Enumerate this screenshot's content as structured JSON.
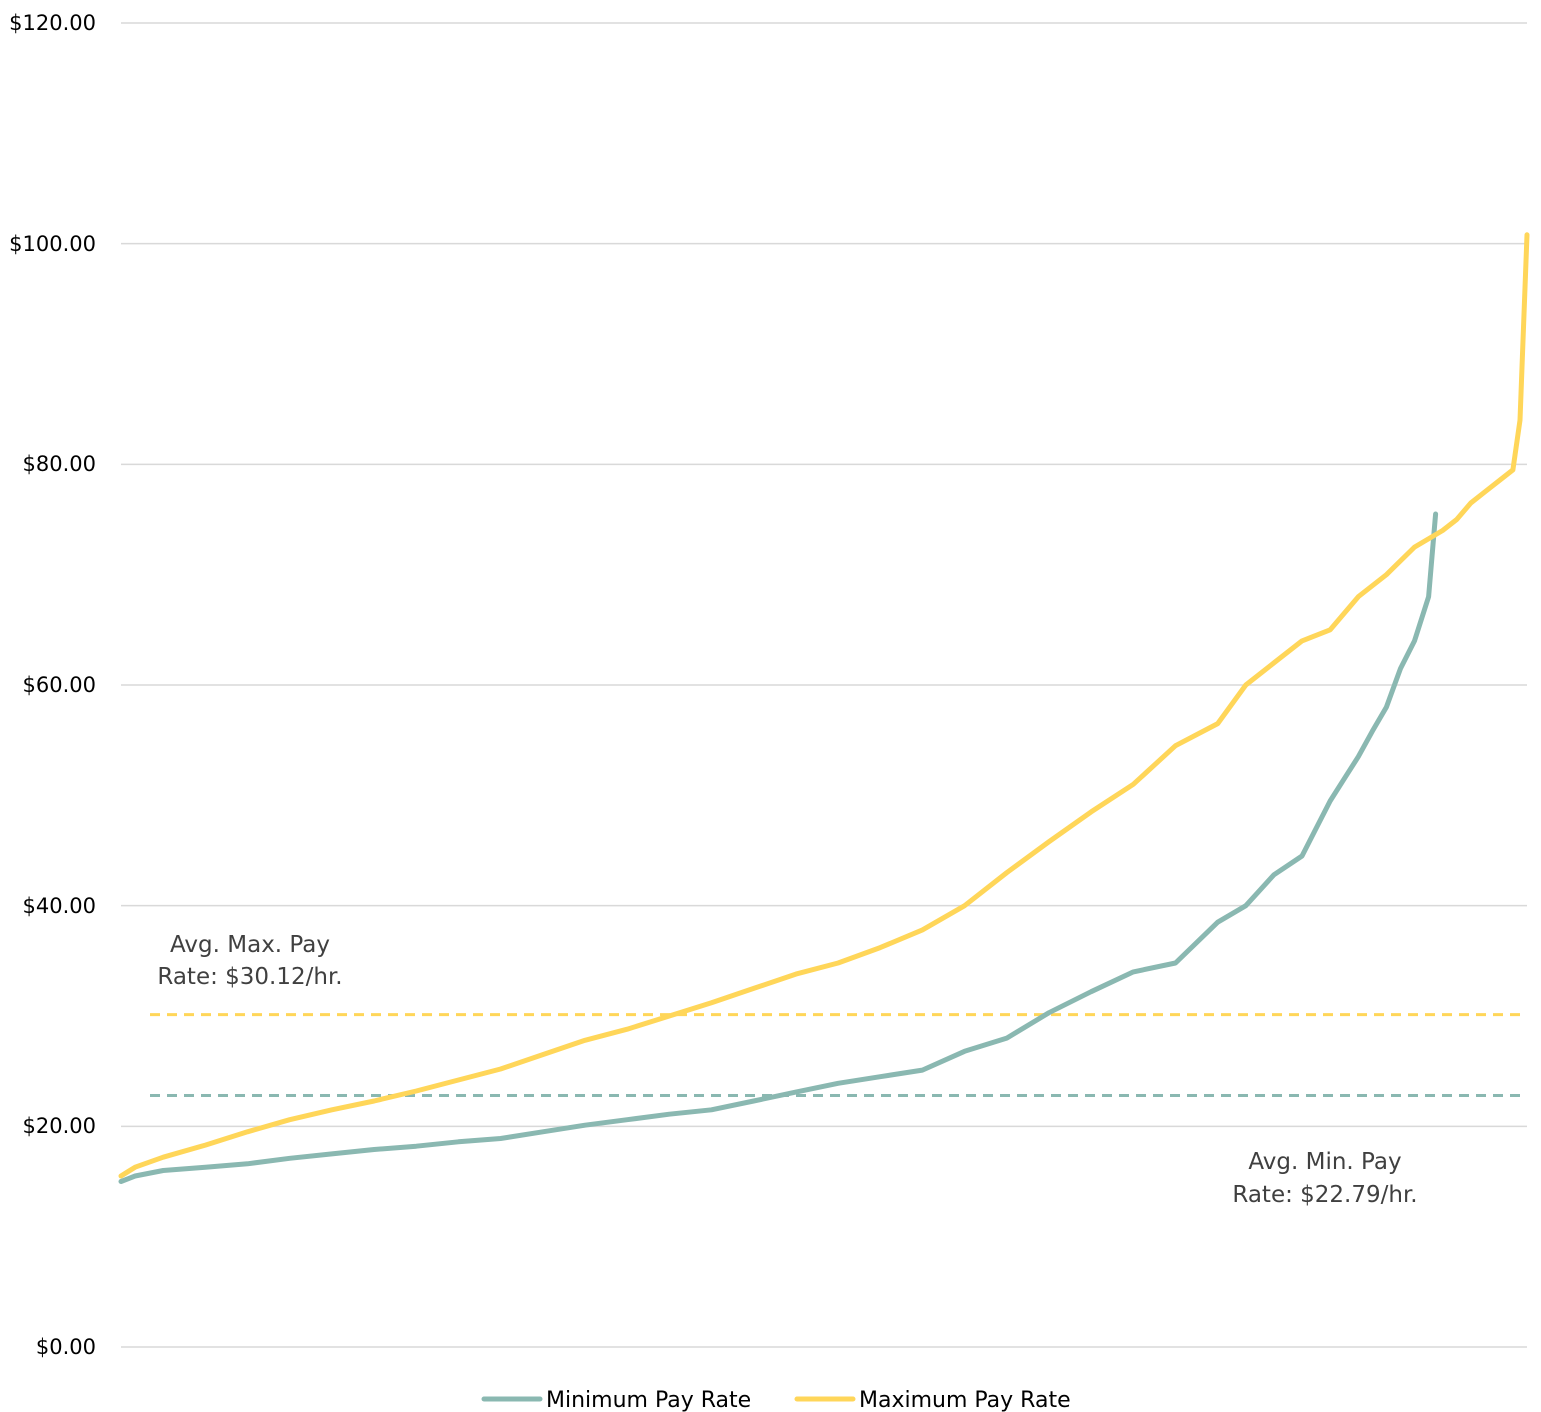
{
  "chart_data": {
    "type": "line",
    "title": "",
    "xlabel": "",
    "ylabel": "",
    "ylim": [
      0,
      120
    ],
    "y_ticks": [
      "$0.00",
      "$20.00",
      "$40.00",
      "$60.00",
      "$80.00",
      "$100.00",
      "$120.00"
    ],
    "grid": "horizontal",
    "legend_position": "bottom",
    "x_range": [
      0,
      1
    ],
    "colors": {
      "min": "#8ab8b1",
      "max": "#ffd659",
      "grid": "#d9d9d9",
      "annotation": "#404040"
    },
    "series": [
      {
        "name": "Minimum Pay Rate",
        "color": "#8ab8b1",
        "x_end": 0.935,
        "x": [
          0,
          0.01,
          0.03,
          0.06,
          0.09,
          0.12,
          0.15,
          0.18,
          0.21,
          0.24,
          0.27,
          0.3,
          0.33,
          0.36,
          0.39,
          0.42,
          0.45,
          0.48,
          0.51,
          0.54,
          0.57,
          0.6,
          0.63,
          0.66,
          0.69,
          0.72,
          0.75,
          0.78,
          0.8,
          0.82,
          0.84,
          0.85,
          0.86,
          0.87,
          0.88,
          0.89,
          0.9,
          0.91,
          0.92,
          0.93,
          0.935
        ],
        "y": [
          15.0,
          15.5,
          16.0,
          16.3,
          16.6,
          17.1,
          17.5,
          17.9,
          18.2,
          18.6,
          18.9,
          19.5,
          20.1,
          20.6,
          21.1,
          21.5,
          22.3,
          23.1,
          23.9,
          24.5,
          25.1,
          26.8,
          28.0,
          30.3,
          32.2,
          34.0,
          34.8,
          38.5,
          40.0,
          42.8,
          44.5,
          47.0,
          49.5,
          51.5,
          53.5,
          55.8,
          58.0,
          61.5,
          64.0,
          68.0,
          75.5
        ]
      },
      {
        "name": "Maximum Pay Rate",
        "color": "#ffd659",
        "x_end": 1.0,
        "x": [
          0,
          0.01,
          0.03,
          0.06,
          0.09,
          0.12,
          0.15,
          0.18,
          0.21,
          0.24,
          0.27,
          0.3,
          0.33,
          0.36,
          0.39,
          0.42,
          0.45,
          0.48,
          0.51,
          0.54,
          0.57,
          0.6,
          0.63,
          0.66,
          0.69,
          0.72,
          0.75,
          0.78,
          0.8,
          0.82,
          0.84,
          0.86,
          0.88,
          0.9,
          0.92,
          0.94,
          0.95,
          0.96,
          0.97,
          0.98,
          0.99,
          0.995,
          1.0
        ],
        "y": [
          15.5,
          16.3,
          17.2,
          18.3,
          19.5,
          20.6,
          21.5,
          22.3,
          23.2,
          24.2,
          25.2,
          26.5,
          27.8,
          28.8,
          30.0,
          31.2,
          32.5,
          33.8,
          34.8,
          36.2,
          37.8,
          40.0,
          43.0,
          45.8,
          48.5,
          51.0,
          54.5,
          56.5,
          60.0,
          62.0,
          64.0,
          65.0,
          68.0,
          70.0,
          72.5,
          74.0,
          75.0,
          76.5,
          77.5,
          78.5,
          79.5,
          84.0,
          100.8
        ]
      }
    ],
    "reference_lines": [
      {
        "series": "max",
        "value": 30.12,
        "label_line1": "Avg. Max. Pay",
        "label_line2": "Rate: $30.12/hr."
      },
      {
        "series": "min",
        "value": 22.79,
        "label_line1": "Avg. Min. Pay",
        "label_line2": "Rate: $22.79/hr."
      }
    ]
  },
  "legend": {
    "min_label": "Minimum Pay Rate",
    "max_label": "Maximum Pay Rate"
  }
}
